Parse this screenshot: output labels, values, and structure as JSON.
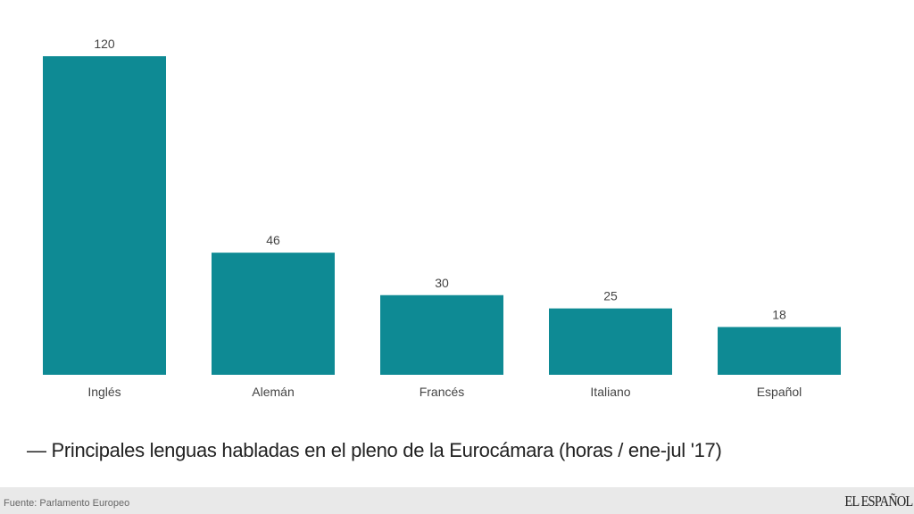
{
  "chart_data": {
    "type": "bar",
    "title": "— Principales lenguas habladas en el pleno de la Eurocámara (horas / ene-jul '17)",
    "categories": [
      "Inglés",
      "Alemán",
      "Francés",
      "Italiano",
      "Español"
    ],
    "values": [
      120,
      46,
      30,
      25,
      18
    ],
    "xlabel": "",
    "ylabel": "",
    "ylim": [
      0,
      120
    ],
    "grid": false,
    "bar_color": "#0e8a94"
  },
  "footer": {
    "source": "Fuente: Parlamento Europeo",
    "logo": "EL ESPAÑOL"
  }
}
